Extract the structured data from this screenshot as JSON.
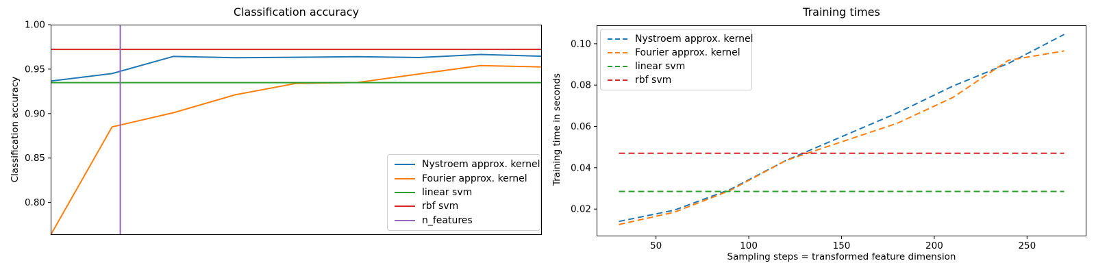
{
  "figure": {
    "background": "#ffffff",
    "frame_color": "#000000"
  },
  "chart_data": [
    {
      "type": "line",
      "title": "Classification accuracy",
      "xlabel": "",
      "ylabel": "Classification accuracy",
      "x": [
        30,
        60,
        90,
        120,
        150,
        180,
        210,
        240,
        270
      ],
      "xlim": [
        30,
        270
      ],
      "ylim": [
        0.7635,
        1.0
      ],
      "grid": false,
      "legend_position": "lower right",
      "yticks": {
        "values": [
          1.0,
          0.95,
          0.9,
          0.85,
          0.8
        ],
        "labels": [
          "1.00",
          "0.95",
          "0.90",
          "0.85",
          "0.80"
        ]
      },
      "xticks": {
        "values": [],
        "labels": []
      },
      "series": [
        {
          "name": "Nystroem approx. kernel",
          "color": "#1f77b4",
          "dash": false,
          "y": [
            0.9365,
            0.945,
            0.9643,
            0.9628,
            0.9633,
            0.964,
            0.963,
            0.9665,
            0.9645
          ]
        },
        {
          "name": "Fourier approx. kernel",
          "color": "#ff7f0e",
          "dash": false,
          "y": [
            0.7635,
            0.885,
            0.901,
            0.921,
            0.934,
            0.935,
            0.9445,
            0.954,
            0.9525
          ]
        },
        {
          "name": "linear svm",
          "color": "#2ca02c",
          "dash": false,
          "hline": 0.9348,
          "span": [
            30,
            270
          ]
        },
        {
          "name": "rbf svm",
          "color": "#d62728",
          "dash": false,
          "hline": 0.9722,
          "span": [
            30,
            270
          ]
        },
        {
          "name": "n_features",
          "color": "#9467bd",
          "dash": false,
          "vline": 64
        }
      ]
    },
    {
      "type": "line",
      "title": "Training times",
      "xlabel": "Sampling steps = transformed feature dimension",
      "ylabel": "Training time in seconds",
      "x": [
        30,
        60,
        90,
        120,
        150,
        180,
        210,
        240,
        270
      ],
      "xlim": [
        18,
        282
      ],
      "ylim": [
        0.0068,
        0.1089
      ],
      "grid": false,
      "legend_position": "upper left",
      "yticks": {
        "values": [
          0.02,
          0.04,
          0.06,
          0.08,
          0.1
        ],
        "labels": [
          "0.02",
          "0.04",
          "0.06",
          "0.08",
          "0.10"
        ]
      },
      "xticks": {
        "values": [
          50,
          100,
          150,
          200,
          250
        ],
        "labels": [
          "50",
          "100",
          "150",
          "200",
          "250"
        ]
      },
      "series": [
        {
          "name": "Nystroem approx. kernel",
          "color": "#1f77b4",
          "dash": true,
          "y": [
            0.014,
            0.0195,
            0.0295,
            0.0435,
            0.055,
            0.0665,
            0.0795,
            0.0905,
            0.1045
          ]
        },
        {
          "name": "Fourier approx. kernel",
          "color": "#ff7f0e",
          "dash": true,
          "y": [
            0.0125,
            0.0185,
            0.029,
            0.0435,
            0.0525,
            0.0615,
            0.074,
            0.092,
            0.0965
          ]
        },
        {
          "name": "linear svm",
          "color": "#2ca02c",
          "dash": true,
          "hline": 0.0285,
          "span": [
            30,
            270
          ]
        },
        {
          "name": "rbf svm",
          "color": "#d62728",
          "dash": true,
          "hline": 0.047,
          "span": [
            30,
            270
          ]
        }
      ]
    }
  ]
}
